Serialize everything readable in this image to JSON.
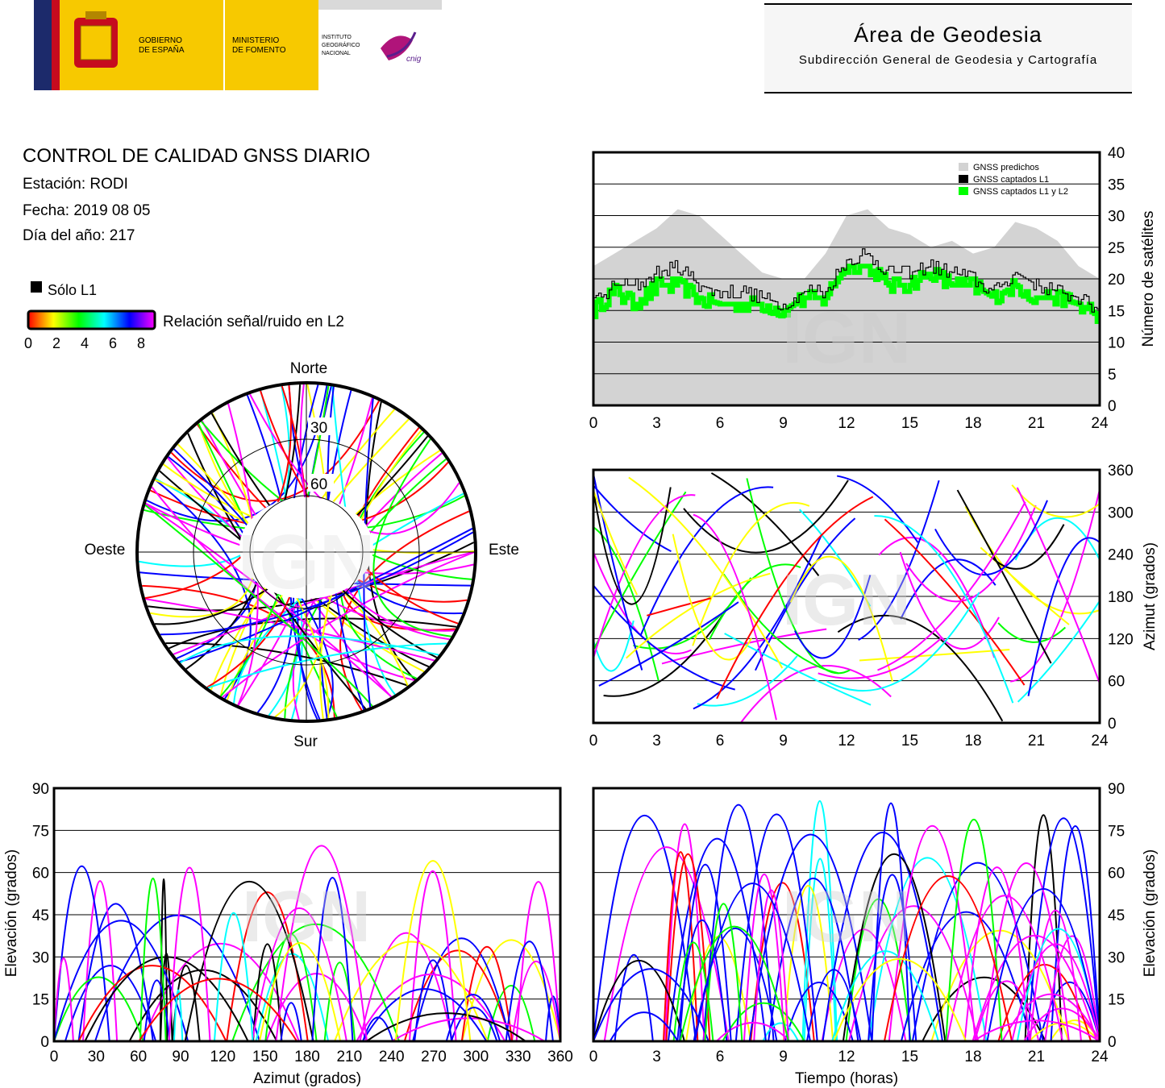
{
  "header": {
    "gov_line1": "GOBIERNO",
    "gov_line2": "DE ESPAÑA",
    "min_line1": "MINISTERIO",
    "min_line2": "DE FOMENTO",
    "ign_line1": "INSTITUTO",
    "ign_line2": "GEOGRÁFICO",
    "ign_line3": "NACIONAL",
    "cnig_text": "cnig",
    "area_title": "Área de Geodesia",
    "area_subtitle": "Subdirección General de Geodesia y Cartografía"
  },
  "report": {
    "title": "CONTROL DE CALIDAD GNSS DIARIO",
    "station": "Estación: RODI",
    "date": "Fecha: 2019 08 05",
    "doy": "Día del año: 217"
  },
  "legend": {
    "only_l1": "Sólo L1",
    "snr_label": "Relación señal/ruido en L2",
    "snr_ticks": [
      "0",
      "2",
      "4",
      "6",
      "8"
    ]
  },
  "watermark": "IGN",
  "colors": {
    "predicted": "#d3d3d3",
    "l1": "#000000",
    "l1l2": "#00ff00",
    "snr_scale": [
      "#ff0000",
      "#ffff00",
      "#00ff00",
      "#00ffff",
      "#0000ff",
      "#ff00ff"
    ]
  },
  "chart_data": [
    {
      "type": "area",
      "ylabel": "Número de satélites",
      "xlim": [
        0,
        24
      ],
      "ylim": [
        0,
        40
      ],
      "x_ticks": [
        "0",
        "3",
        "6",
        "9",
        "12",
        "15",
        "18",
        "21",
        "24"
      ],
      "y_ticks": [
        "0",
        "5",
        "10",
        "15",
        "20",
        "25",
        "30",
        "35",
        "40"
      ],
      "grid": true,
      "legend_position": "top-right",
      "x": [
        0,
        1,
        2,
        3,
        4,
        5,
        6,
        7,
        8,
        9,
        10,
        11,
        12,
        13,
        14,
        15,
        16,
        17,
        18,
        19,
        20,
        21,
        22,
        23,
        24
      ],
      "series": [
        {
          "name": "GNSS predichos",
          "values": [
            22,
            24,
            26,
            28,
            31,
            30,
            27,
            24,
            21,
            20,
            20,
            24,
            30,
            31,
            28,
            27,
            25,
            26,
            24,
            25,
            29,
            28,
            26,
            22,
            20
          ]
        },
        {
          "name": "GNSS captados L1",
          "values": [
            16,
            19,
            19,
            21,
            22,
            19,
            18,
            18,
            17,
            16,
            18,
            18,
            23,
            24,
            21,
            21,
            22,
            21,
            20,
            18,
            21,
            19,
            18,
            17,
            15
          ]
        },
        {
          "name": "GNSS captados L1 y L2",
          "values": [
            15,
            18,
            16,
            19,
            19,
            17,
            16,
            16,
            16,
            15,
            17,
            17,
            22,
            22,
            19,
            19,
            21,
            19,
            19,
            17,
            19,
            17,
            17,
            16,
            14
          ]
        }
      ]
    },
    {
      "type": "scatter",
      "ylabel": "Azimut (grados)",
      "xlim": [
        0,
        24
      ],
      "ylim": [
        0,
        360
      ],
      "x_ticks": [
        "0",
        "3",
        "6",
        "9",
        "12",
        "15",
        "18",
        "21",
        "24"
      ],
      "y_ticks": [
        "0",
        "60",
        "120",
        "180",
        "240",
        "300",
        "360"
      ],
      "grid": true
    },
    {
      "type": "scatter",
      "xlabel": "Azimut (grados)",
      "ylabel": "Elevación (grados)",
      "xlim": [
        0,
        360
      ],
      "ylim": [
        0,
        90
      ],
      "x_ticks": [
        "0",
        "30",
        "60",
        "90",
        "120",
        "150",
        "180",
        "210",
        "240",
        "270",
        "300",
        "330",
        "360"
      ],
      "y_ticks": [
        "0",
        "15",
        "30",
        "45",
        "60",
        "75",
        "90"
      ],
      "grid": true
    },
    {
      "type": "scatter",
      "xlabel": "Tiempo (horas)",
      "ylabel": "Elevación (grados)",
      "xlim": [
        0,
        24
      ],
      "ylim": [
        0,
        90
      ],
      "x_ticks": [
        "0",
        "3",
        "6",
        "9",
        "12",
        "15",
        "18",
        "21",
        "24"
      ],
      "y_ticks": [
        "0",
        "15",
        "30",
        "45",
        "60",
        "75",
        "90"
      ],
      "grid": true
    },
    {
      "type": "scatter",
      "subtype": "polar skyplot",
      "direction_labels": {
        "north": "Norte",
        "south": "Sur",
        "west": "Oeste",
        "east": "Este"
      },
      "ring_labels": [
        "30",
        "60"
      ]
    }
  ]
}
